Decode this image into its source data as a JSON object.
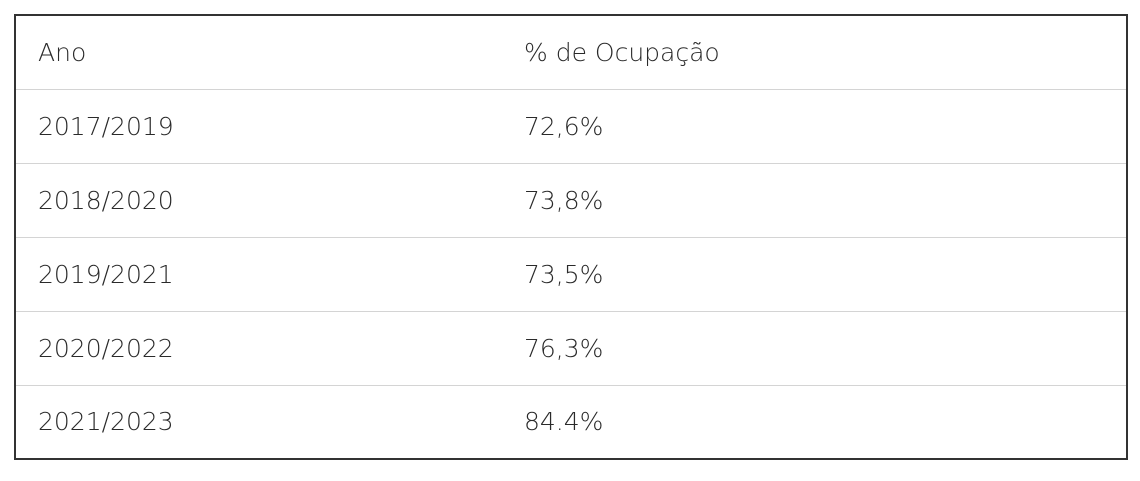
{
  "table": {
    "header": [
      "Ano",
      "% de Ocupação"
    ],
    "rows": [
      [
        "2017/2019",
        "72,6%"
      ],
      [
        "2018/2020",
        "73,8%"
      ],
      [
        "2019/2021",
        "73,5%"
      ],
      [
        "2020/2022",
        "76,3%"
      ],
      [
        "2021/2023",
        "84.4%"
      ]
    ]
  }
}
